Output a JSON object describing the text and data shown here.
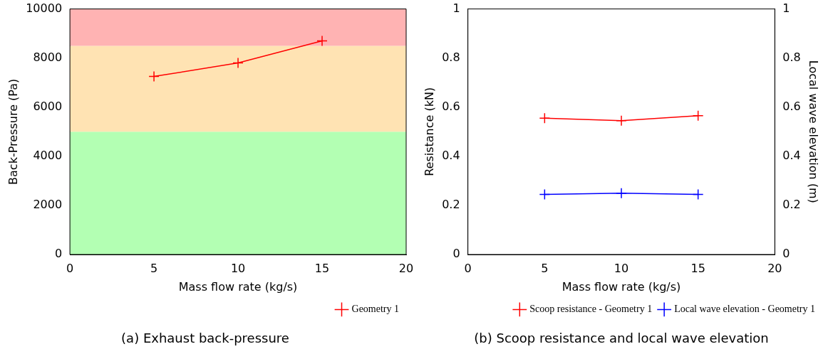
{
  "chart_data": [
    {
      "type": "line",
      "title": "(a) Exhaust back-pressure",
      "xlabel": "Mass flow rate (kg/s)",
      "ylabel": "Back-Pressure (Pa)",
      "xlim": [
        0,
        20
      ],
      "xticks": [
        0,
        5,
        10,
        15,
        20
      ],
      "ylim": [
        0,
        10000
      ],
      "yticks": [
        0,
        2000,
        4000,
        6000,
        8000,
        10000
      ],
      "series": [
        {
          "name": "Geometry 1",
          "color": "#ff0000",
          "x": [
            5,
            10,
            15
          ],
          "values": [
            7250,
            7800,
            8700
          ]
        }
      ],
      "bands": [
        {
          "axis": "y",
          "from": 0,
          "to": 5000,
          "color": "#b3ffb3"
        },
        {
          "axis": "y",
          "from": 5000,
          "to": 8500,
          "color": "#ffe3b3"
        },
        {
          "axis": "y",
          "from": 8500,
          "to": 10000,
          "color": "#ffb3b3"
        }
      ],
      "marker": "cross",
      "legend": "bottom",
      "grid": false
    },
    {
      "type": "line",
      "title": "(b) Scoop resistance and local wave elevation",
      "xlabel": "Mass flow rate (kg/s)",
      "ylabel": "Resistance (kN)",
      "y2label": "Local wave elevation (m)",
      "xlim": [
        0,
        20
      ],
      "xticks": [
        0,
        5,
        10,
        15,
        20
      ],
      "ylim": [
        0,
        1
      ],
      "yticks": [
        0,
        0.2,
        0.4,
        0.6,
        0.8,
        1
      ],
      "y2lim": [
        0,
        1
      ],
      "y2ticks": [
        0,
        0.2,
        0.4,
        0.6,
        0.8,
        1
      ],
      "series": [
        {
          "name": "Scoop resistance - Geometry 1",
          "color": "#ff0000",
          "x": [
            5,
            10,
            15
          ],
          "values": [
            0.555,
            0.545,
            0.565
          ]
        },
        {
          "name": "Local wave elevation - Geometry 1",
          "color": "#0000ff",
          "x": [
            5,
            10,
            15
          ],
          "values": [
            0.245,
            0.25,
            0.245
          ],
          "axis": "y2"
        }
      ],
      "marker": "cross",
      "legend": "bottom",
      "grid": false
    }
  ]
}
